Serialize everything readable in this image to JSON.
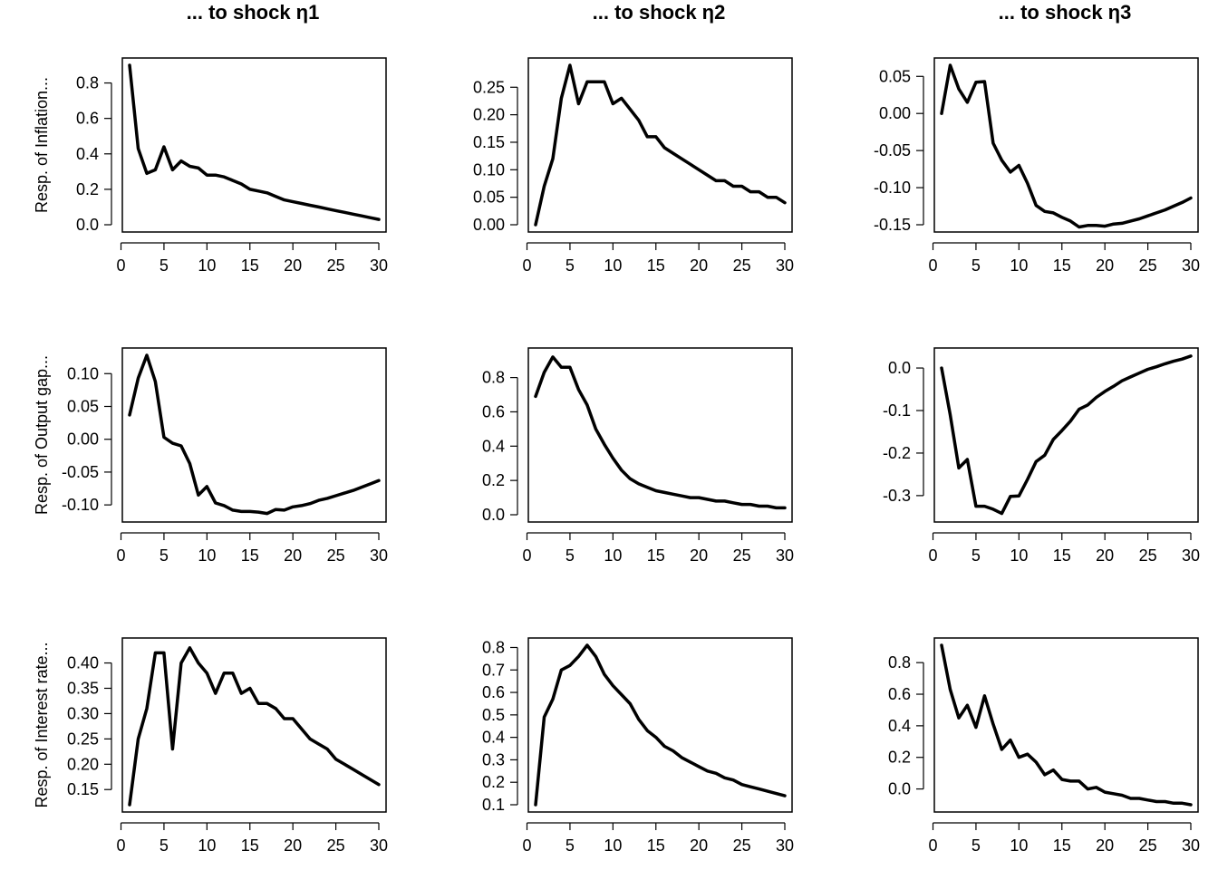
{
  "chart_data": {
    "type": "line",
    "layout": "3x3 grid of line panels",
    "column_titles": [
      "... to shock η1",
      "... to shock η2",
      "... to shock η3"
    ],
    "row_labels": [
      "Resp. of Inflation...",
      "Resp. of Output gap...",
      "Resp. of Interest rate..."
    ],
    "x": [
      1,
      2,
      3,
      4,
      5,
      6,
      7,
      8,
      9,
      10,
      11,
      12,
      13,
      14,
      15,
      16,
      17,
      18,
      19,
      20,
      21,
      22,
      23,
      24,
      25,
      26,
      27,
      28,
      29,
      30
    ],
    "x_ticks": [
      0,
      5,
      10,
      15,
      20,
      25,
      30
    ],
    "x_tick_labels": [
      "0",
      "5",
      "10",
      "15",
      "20",
      "25",
      "30"
    ],
    "grid": false,
    "legend": "none",
    "line_color": "#000000",
    "panels": [
      {
        "row": 0,
        "col": 0,
        "ylim": [
          0.0,
          0.9
        ],
        "y_ticks": [
          0.0,
          0.2,
          0.4,
          0.6,
          0.8
        ],
        "y_tick_labels": [
          "0.0",
          "0.2",
          "0.4",
          "0.6",
          "0.8"
        ],
        "values": [
          0.9,
          0.43,
          0.29,
          0.31,
          0.44,
          0.31,
          0.36,
          0.33,
          0.32,
          0.28,
          0.28,
          0.27,
          0.25,
          0.23,
          0.2,
          0.19,
          0.18,
          0.16,
          0.14,
          0.13,
          0.12,
          0.11,
          0.1,
          0.09,
          0.08,
          0.07,
          0.06,
          0.05,
          0.04,
          0.03
        ]
      },
      {
        "row": 0,
        "col": 1,
        "ylim": [
          0.0,
          0.29
        ],
        "y_ticks": [
          0.0,
          0.05,
          0.1,
          0.15,
          0.2,
          0.25
        ],
        "y_tick_labels": [
          "0.00",
          "0.05",
          "0.10",
          "0.15",
          "0.20",
          "0.25"
        ],
        "values": [
          0.0,
          0.07,
          0.12,
          0.23,
          0.29,
          0.22,
          0.26,
          0.26,
          0.26,
          0.22,
          0.23,
          0.21,
          0.19,
          0.16,
          0.16,
          0.14,
          0.13,
          0.12,
          0.11,
          0.1,
          0.09,
          0.08,
          0.08,
          0.07,
          0.07,
          0.06,
          0.06,
          0.05,
          0.05,
          0.04
        ]
      },
      {
        "row": 0,
        "col": 2,
        "ylim": [
          -0.15,
          0.065
        ],
        "y_ticks": [
          -0.15,
          -0.1,
          -0.05,
          0.0,
          0.05
        ],
        "y_tick_labels": [
          "-0.15",
          "-0.10",
          "-0.05",
          "0.00",
          "0.05"
        ],
        "values": [
          0.0,
          0.065,
          0.033,
          0.015,
          0.042,
          0.043,
          -0.04,
          -0.063,
          -0.079,
          -0.07,
          -0.094,
          -0.124,
          -0.132,
          -0.134,
          -0.14,
          -0.145,
          -0.153,
          -0.151,
          -0.151,
          -0.152,
          -0.149,
          -0.148,
          -0.145,
          -0.142,
          -0.138,
          -0.134,
          -0.13,
          -0.125,
          -0.12,
          -0.114
        ]
      },
      {
        "row": 1,
        "col": 0,
        "ylim": [
          -0.115,
          0.128
        ],
        "y_ticks": [
          -0.1,
          -0.05,
          0.0,
          0.05,
          0.1
        ],
        "y_tick_labels": [
          "-0.10",
          "-0.05",
          "0.00",
          "0.05",
          "0.10"
        ],
        "values": [
          0.037,
          0.093,
          0.128,
          0.088,
          0.003,
          -0.006,
          -0.01,
          -0.037,
          -0.085,
          -0.072,
          -0.097,
          -0.101,
          -0.108,
          -0.11,
          -0.11,
          -0.111,
          -0.113,
          -0.107,
          -0.108,
          -0.103,
          -0.101,
          -0.098,
          -0.093,
          -0.09,
          -0.086,
          -0.082,
          -0.078,
          -0.073,
          -0.068,
          -0.063
        ]
      },
      {
        "row": 1,
        "col": 1,
        "ylim": [
          0.0,
          0.93
        ],
        "y_ticks": [
          0.0,
          0.2,
          0.4,
          0.6,
          0.8
        ],
        "y_tick_labels": [
          "0.0",
          "0.2",
          "0.4",
          "0.6",
          "0.8"
        ],
        "values": [
          0.69,
          0.83,
          0.92,
          0.86,
          0.86,
          0.73,
          0.64,
          0.5,
          0.41,
          0.33,
          0.26,
          0.21,
          0.18,
          0.16,
          0.14,
          0.13,
          0.12,
          0.11,
          0.1,
          0.1,
          0.09,
          0.08,
          0.08,
          0.07,
          0.06,
          0.06,
          0.05,
          0.05,
          0.04,
          0.04
        ]
      },
      {
        "row": 1,
        "col": 2,
        "ylim": [
          -0.345,
          0.03
        ],
        "y_ticks": [
          -0.3,
          -0.2,
          -0.1,
          0.0
        ],
        "y_tick_labels": [
          "-0.3",
          "-0.2",
          "-0.1",
          "0.0"
        ],
        "values": [
          0.0,
          -0.11,
          -0.235,
          -0.215,
          -0.325,
          -0.325,
          -0.332,
          -0.342,
          -0.302,
          -0.301,
          -0.262,
          -0.22,
          -0.205,
          -0.168,
          -0.147,
          -0.125,
          -0.097,
          -0.087,
          -0.069,
          -0.055,
          -0.043,
          -0.03,
          -0.021,
          -0.012,
          -0.003,
          0.003,
          0.01,
          0.016,
          0.021,
          0.028
        ]
      },
      {
        "row": 2,
        "col": 0,
        "ylim": [
          0.12,
          0.435
        ],
        "y_ticks": [
          0.15,
          0.2,
          0.25,
          0.3,
          0.35,
          0.4
        ],
        "y_tick_labels": [
          "0.15",
          "0.20",
          "0.25",
          "0.30",
          "0.35",
          "0.40"
        ],
        "values": [
          0.12,
          0.25,
          0.31,
          0.42,
          0.42,
          0.23,
          0.4,
          0.43,
          0.4,
          0.38,
          0.34,
          0.38,
          0.38,
          0.34,
          0.35,
          0.32,
          0.32,
          0.31,
          0.29,
          0.29,
          0.27,
          0.25,
          0.24,
          0.23,
          0.21,
          0.2,
          0.19,
          0.18,
          0.17,
          0.16
        ]
      },
      {
        "row": 2,
        "col": 1,
        "ylim": [
          0.1,
          0.81
        ],
        "y_ticks": [
          0.1,
          0.2,
          0.3,
          0.4,
          0.5,
          0.6,
          0.7,
          0.8
        ],
        "y_tick_labels": [
          "0.1",
          "0.2",
          "0.3",
          "0.4",
          "0.5",
          "0.6",
          "0.7",
          "0.8"
        ],
        "values": [
          0.1,
          0.49,
          0.57,
          0.7,
          0.72,
          0.76,
          0.81,
          0.76,
          0.68,
          0.63,
          0.59,
          0.55,
          0.48,
          0.43,
          0.4,
          0.36,
          0.34,
          0.31,
          0.29,
          0.27,
          0.25,
          0.24,
          0.22,
          0.21,
          0.19,
          0.18,
          0.17,
          0.16,
          0.15,
          0.14
        ]
      },
      {
        "row": 2,
        "col": 2,
        "ylim": [
          -0.1,
          0.91
        ],
        "y_ticks": [
          0.0,
          0.2,
          0.4,
          0.6,
          0.8
        ],
        "y_tick_labels": [
          "0.0",
          "0.2",
          "0.4",
          "0.6",
          "0.8"
        ],
        "values": [
          0.91,
          0.63,
          0.45,
          0.53,
          0.39,
          0.59,
          0.41,
          0.25,
          0.31,
          0.2,
          0.22,
          0.17,
          0.09,
          0.12,
          0.06,
          0.05,
          0.05,
          0.0,
          0.01,
          -0.02,
          -0.03,
          -0.04,
          -0.06,
          -0.06,
          -0.07,
          -0.08,
          -0.08,
          -0.09,
          -0.09,
          -0.1
        ]
      }
    ]
  }
}
